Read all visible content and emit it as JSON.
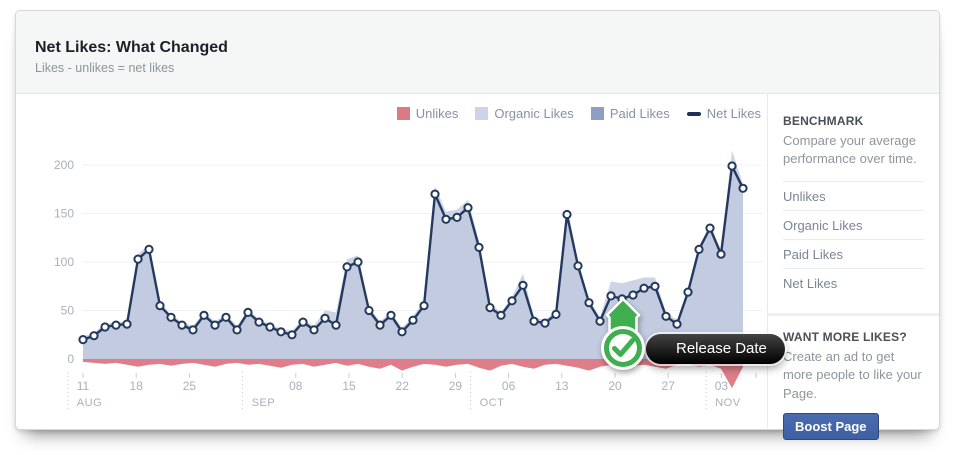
{
  "header": {
    "title": "Net Likes: What Changed",
    "subtitle": "Likes - unlikes = net likes"
  },
  "legend": {
    "items": [
      {
        "label": "Unlikes",
        "color": "#dc7a84",
        "swatch": "square"
      },
      {
        "label": "Organic Likes",
        "color": "#ccd4e6",
        "swatch": "square"
      },
      {
        "label": "Paid Likes",
        "color": "#8e9fc2",
        "swatch": "square"
      },
      {
        "label": "Net Likes",
        "color": "#1d3153",
        "swatch": "line"
      }
    ]
  },
  "release_marker": {
    "tooltip": "Release Date",
    "icon": "check-icon",
    "color": "#3fae4e"
  },
  "sidebar": {
    "benchmark": {
      "title": "BENCHMARK",
      "description": "Compare your average performance over time.",
      "items": [
        "Unlikes",
        "Organic Likes",
        "Paid Likes",
        "Net Likes"
      ]
    },
    "promo": {
      "title": "WANT MORE LIKES?",
      "description": "Create an ad to get more people to like your Page.",
      "button_label": "Boost Page",
      "button_color": "#4264a6"
    }
  },
  "chart_data": {
    "type": "area",
    "title": "Net Likes: What Changed",
    "xlabel": "",
    "ylabel": "",
    "ylim": [
      -35,
      215
    ],
    "y_ticks": [
      0,
      50,
      100,
      150,
      200
    ],
    "grid": true,
    "legend_position": "top-right",
    "x_tick_labels": [
      {
        "label": "11",
        "day": 0
      },
      {
        "label": "18",
        "day": 7
      },
      {
        "label": "25",
        "day": 14
      },
      {
        "label": "08",
        "day": 28
      },
      {
        "label": "15",
        "day": 35
      },
      {
        "label": "22",
        "day": 42
      },
      {
        "label": "29",
        "day": 49
      },
      {
        "label": "06",
        "day": 56
      },
      {
        "label": "13",
        "day": 63
      },
      {
        "label": "20",
        "day": 70
      },
      {
        "label": "27",
        "day": 77
      },
      {
        "label": "03",
        "day": 84
      }
    ],
    "month_labels": [
      {
        "label": "AUG",
        "day": -2
      },
      {
        "label": "SEP",
        "day": 21
      },
      {
        "label": "OCT",
        "day": 51
      },
      {
        "label": "NOV",
        "day": 82
      }
    ],
    "under_line_fill": "#c2cbdf",
    "series": [
      {
        "name": "Net Likes",
        "type": "line",
        "color": "#24395e",
        "marker": "circle",
        "values": [
          20,
          24,
          33,
          35,
          36,
          103,
          113,
          55,
          43,
          35,
          30,
          45,
          35,
          43,
          30,
          48,
          38,
          33,
          28,
          25,
          38,
          30,
          42,
          35,
          95,
          100,
          50,
          35,
          45,
          28,
          40,
          55,
          170,
          144,
          146,
          156,
          115,
          53,
          45,
          60,
          76,
          39,
          37,
          46,
          149,
          96,
          58,
          39,
          65,
          62,
          66,
          73,
          75,
          44,
          36,
          69,
          113,
          135,
          108,
          199,
          176
        ]
      },
      {
        "name": "Organic Likes",
        "type": "area",
        "color": "#ccd4e6",
        "values": [
          23,
          27,
          36,
          38,
          39,
          108,
          118,
          58,
          46,
          38,
          34,
          48,
          39,
          46,
          34,
          51,
          41,
          36,
          31,
          29,
          41,
          34,
          50,
          48,
          103,
          107,
          53,
          39,
          48,
          32,
          44,
          60,
          178,
          152,
          154,
          164,
          122,
          57,
          48,
          64,
          88,
          43,
          40,
          50,
          156,
          101,
          61,
          43,
          80,
          78,
          81,
          84,
          84,
          48,
          40,
          72,
          116,
          138,
          112,
          215,
          180
        ]
      },
      {
        "name": "Unlikes",
        "type": "area",
        "color": "#df7e88",
        "values": [
          -3,
          -4,
          -5,
          -4,
          -6,
          -8,
          -6,
          -5,
          -7,
          -5,
          -4,
          -6,
          -8,
          -5,
          -4,
          -6,
          -5,
          -7,
          -9,
          -6,
          -5,
          -8,
          -6,
          -4,
          -7,
          -5,
          -8,
          -10,
          -6,
          -12,
          -8,
          -5,
          -6,
          -8,
          -6,
          -5,
          -9,
          -12,
          -7,
          -5,
          -8,
          -10,
          -6,
          -5,
          -7,
          -9,
          -12,
          -8,
          -6,
          -5,
          -7,
          -6,
          -8,
          -10,
          -6,
          -5,
          -8,
          -6,
          -10,
          -30,
          -8
        ]
      }
    ],
    "release_marker_day": 71
  }
}
